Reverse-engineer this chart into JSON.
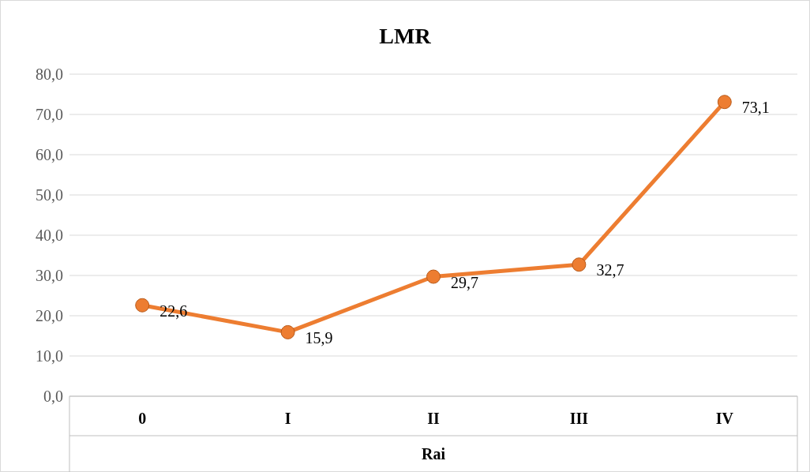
{
  "chart_data": {
    "type": "line",
    "title": "LMR",
    "xlabel": "Rai",
    "categories": [
      "0",
      "I",
      "II",
      "III",
      "IV"
    ],
    "series": [
      {
        "color": "#ed7d31",
        "values": [
          22.6,
          15.9,
          29.7,
          32.7,
          73.1
        ],
        "value_labels": [
          "22,6",
          "15,9",
          "29,7",
          "32,7",
          "73,1"
        ]
      }
    ],
    "ylim": [
      0,
      80
    ],
    "yticks": [
      {
        "value": 0,
        "label": "0,0"
      },
      {
        "value": 10,
        "label": "10,0"
      },
      {
        "value": 20,
        "label": "20,0"
      },
      {
        "value": 30,
        "label": "30,0"
      },
      {
        "value": 40,
        "label": "40,0"
      },
      {
        "value": 50,
        "label": "50,0"
      },
      {
        "value": 60,
        "label": "60,0"
      },
      {
        "value": 70,
        "label": "70,0"
      },
      {
        "value": 80,
        "label": "80,0"
      }
    ],
    "grid": "y",
    "marker": "circle",
    "line_style": "solid"
  }
}
